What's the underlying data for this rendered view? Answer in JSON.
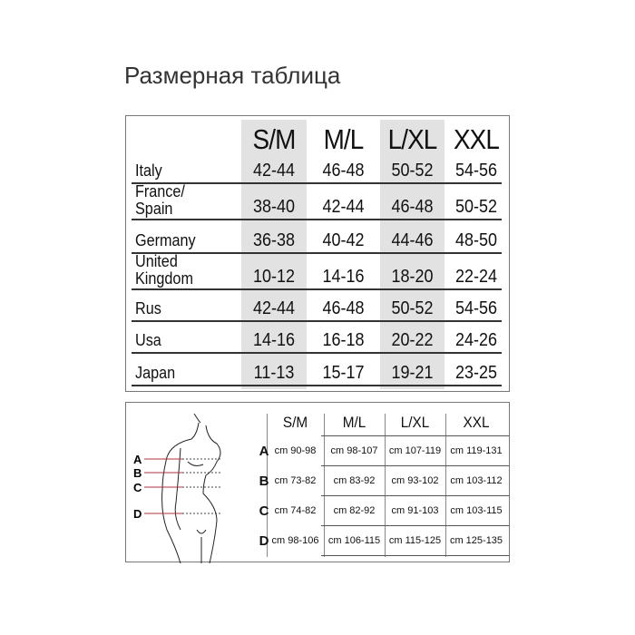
{
  "title": "Размерная таблица",
  "size_table": {
    "sizes": [
      "S/M",
      "M/L",
      "L/XL",
      "XXL"
    ],
    "rows": [
      {
        "country": "Italy",
        "values": [
          "42-44",
          "46-48",
          "50-52",
          "54-56"
        ]
      },
      {
        "country": "France/\nSpain",
        "values": [
          "38-40",
          "42-44",
          "46-48",
          "50-52"
        ]
      },
      {
        "country": "Germany",
        "values": [
          "36-38",
          "40-42",
          "44-46",
          "48-50"
        ]
      },
      {
        "country": "United\nKingdom",
        "values": [
          "10-12",
          "14-16",
          "18-20",
          "22-24"
        ]
      },
      {
        "country": "Rus",
        "values": [
          "42-44",
          "46-48",
          "50-52",
          "54-56"
        ]
      },
      {
        "country": "Usa",
        "values": [
          "14-16",
          "16-18",
          "20-22",
          "24-26"
        ]
      },
      {
        "country": "Japan",
        "values": [
          "11-13",
          "15-17",
          "19-21",
          "23-25"
        ]
      }
    ],
    "shade_color": "#e2e2e2"
  },
  "measure_table": {
    "sizes": [
      "S/M",
      "M/L",
      "L/XL",
      "XXL"
    ],
    "figure_labels": [
      "A",
      "B",
      "C",
      "D"
    ],
    "rows": [
      {
        "label": "A",
        "values": [
          "cm 90-98",
          "cm 98-107",
          "cm 107-119",
          "cm 119-131"
        ]
      },
      {
        "label": "B",
        "values": [
          "cm 73-82",
          "cm 83-92",
          "cm 93-102",
          "cm 103-112"
        ]
      },
      {
        "label": "C",
        "values": [
          "cm 74-82",
          "cm 82-92",
          "cm 91-103",
          "cm 103-115"
        ]
      },
      {
        "label": "D",
        "values": [
          "cm 98-106",
          "cm 106-115",
          "cm 115-125",
          "cm 125-135"
        ]
      }
    ],
    "marker_color": "#b03040"
  }
}
